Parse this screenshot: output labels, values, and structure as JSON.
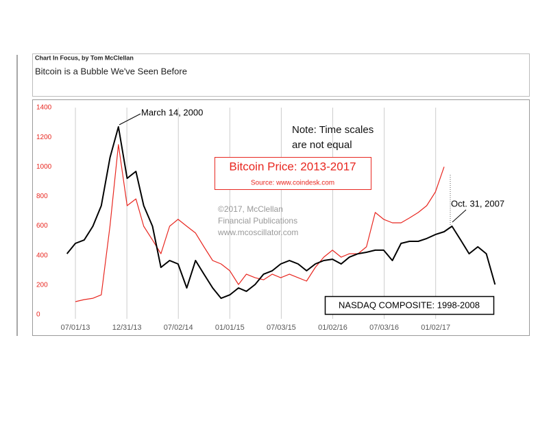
{
  "header": {
    "kicker": "Chart In Focus, by Tom McClellan",
    "title": "Bitcoin is a Bubble We've Seen Before"
  },
  "chart_data": {
    "type": "line",
    "x": [
      "06/01/13",
      "07/01/13",
      "08/01/13",
      "09/01/13",
      "10/01/13",
      "11/01/13",
      "12/01/13",
      "01/01/14",
      "02/01/14",
      "03/01/14",
      "04/01/14",
      "05/01/14",
      "06/01/14",
      "07/01/14",
      "08/01/14",
      "09/01/14",
      "10/01/14",
      "11/01/14",
      "12/01/14",
      "01/01/15",
      "02/01/15",
      "03/01/15",
      "04/01/15",
      "05/01/15",
      "06/01/15",
      "07/01/15",
      "08/01/15",
      "09/01/15",
      "10/01/15",
      "11/01/15",
      "12/01/15",
      "01/01/16",
      "02/01/16",
      "03/01/16",
      "04/01/16",
      "05/01/16",
      "06/01/16",
      "07/01/16",
      "08/01/16",
      "09/01/16",
      "10/01/16",
      "11/01/16",
      "12/01/16",
      "01/01/17",
      "02/01/17",
      "03/01/17",
      "04/01/17",
      "05/01/17",
      "06/01/17",
      "07/01/17",
      "08/01/17"
    ],
    "series": [
      {
        "name": "Bitcoin Price: 2013-2017",
        "color": "#e8261f",
        "values": [
          null,
          88,
          102,
          111,
          134,
          600,
          1150,
          737,
          783,
          598,
          505,
          412,
          598,
          645,
          598,
          552,
          459,
          366,
          343,
          297,
          204,
          274,
          250,
          236,
          274,
          250,
          274,
          250,
          227,
          320,
          389,
          436,
          389,
          412,
          412,
          459,
          691,
          645,
          621,
          621,
          654,
          691,
          737,
          830,
          1000,
          null,
          null,
          null,
          null,
          null,
          null
        ]
      },
      {
        "name": "NASDAQ COMPOSITE: 1998-2008",
        "color": "#000000",
        "values": [
          412,
          482,
          505,
          598,
          737,
          1062,
          1270,
          922,
          969,
          737,
          598,
          320,
          366,
          343,
          181,
          366,
          274,
          181,
          111,
          134,
          181,
          158,
          204,
          274,
          297,
          343,
          366,
          343,
          297,
          343,
          366,
          375,
          343,
          389,
          412,
          422,
          436,
          436,
          366,
          482,
          496,
          496,
          515,
          542,
          561,
          598,
          505,
          412,
          459,
          412,
          204
        ]
      }
    ],
    "xlim": [
      "05/01/13",
      "09/01/17"
    ],
    "xticks": [
      "07/01/13",
      "12/31/13",
      "07/02/14",
      "01/01/15",
      "07/03/15",
      "01/02/16",
      "07/03/16",
      "01/02/17"
    ],
    "ylim": [
      0,
      1400
    ],
    "yticks": [
      0,
      200,
      400,
      600,
      800,
      1000,
      1200,
      1400
    ],
    "grid": true,
    "annotations": {
      "peak": "March 14, 2000",
      "note": [
        "Note: Time scales",
        "are not equal"
      ],
      "source": "Source: www.coindesk.com",
      "credit": [
        "©2017, McClellan",
        "Financial Publications",
        "www.mcoscillator.com"
      ],
      "end": "Oct. 31, 2007"
    }
  }
}
